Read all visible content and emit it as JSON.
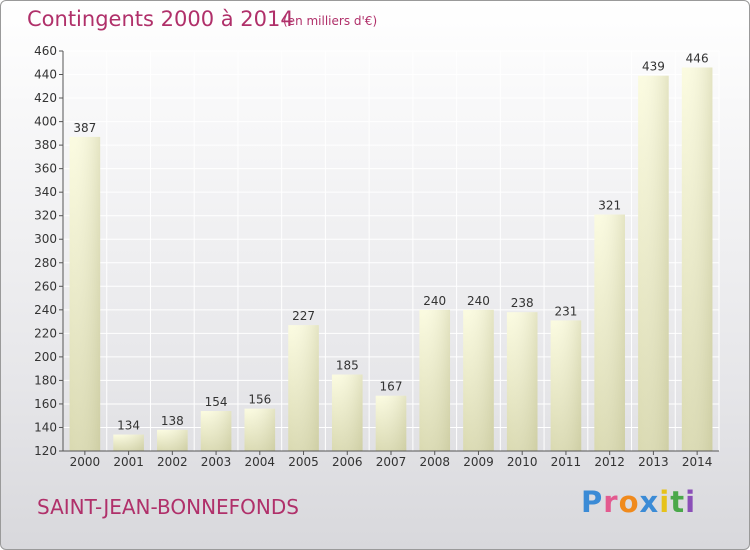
{
  "chart_data": {
    "type": "bar",
    "title": "Contingents 2000 à 2014",
    "subtitle": "(en milliers d'€)",
    "categories": [
      "2000",
      "2001",
      "2002",
      "2003",
      "2004",
      "2005",
      "2006",
      "2007",
      "2008",
      "2009",
      "2010",
      "2011",
      "2012",
      "2013",
      "2014"
    ],
    "values": [
      387,
      134,
      138,
      154,
      156,
      227,
      185,
      167,
      240,
      240,
      238,
      231,
      321,
      439,
      446
    ],
    "ylim": [
      120,
      460
    ],
    "yticks": [
      120,
      140,
      160,
      180,
      200,
      220,
      240,
      260,
      280,
      300,
      320,
      340,
      360,
      380,
      400,
      420,
      440,
      460
    ],
    "grid": true,
    "bar_color": "#f4f4c8"
  },
  "footer": {
    "commune": "SAINT-JEAN-BONNEFONDS",
    "logo_letters": [
      "P",
      "r",
      "o",
      "x",
      "i",
      "t",
      "i"
    ]
  }
}
